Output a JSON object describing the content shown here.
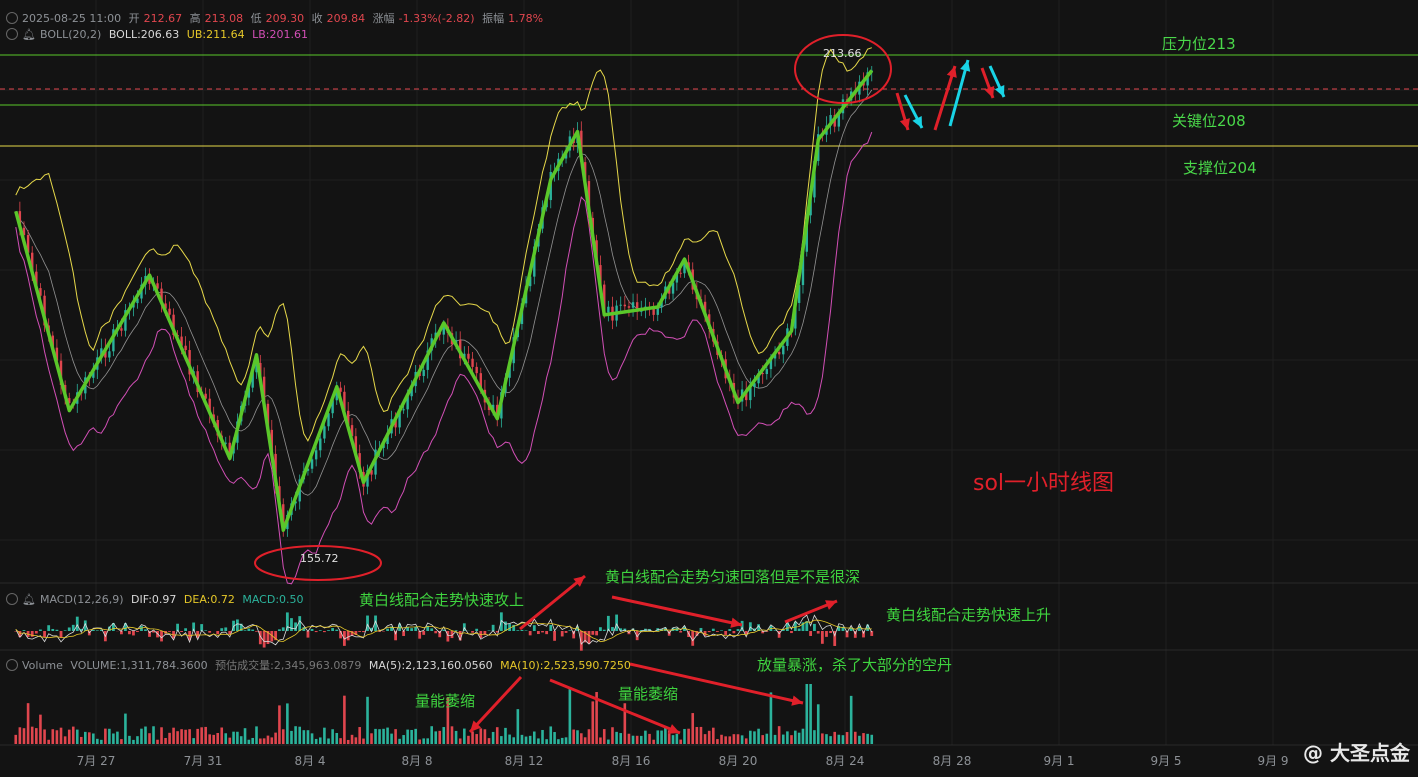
{
  "header": {
    "datetime": "2025-08-25 11:00",
    "open_label": "开",
    "open": "212.67",
    "high_label": "高",
    "high": "213.08",
    "low_label": "低",
    "low": "209.30",
    "close_label": "收",
    "close": "209.84",
    "change_label": "涨幅",
    "change": "-1.33%(-2.82)",
    "amp_label": "振幅",
    "amp": "1.78%",
    "boll_name": "BOLL(20,2)",
    "boll_val": "BOLL:206.63",
    "ub": "UB:211.64",
    "lb": "LB:201.61"
  },
  "macd_header": {
    "name": "MACD(12,26,9)",
    "dif": "DIF:0.97",
    "dea": "DEA:0.72",
    "macd": "MACD:0.50"
  },
  "volume_header": {
    "name": "Volume",
    "volume": "VOLUME:1,311,784.3600",
    "est": "预估成交量:2,345,963.0879",
    "ma5": "MA(5):2,123,160.0560",
    "ma10": "MA(10):2,523,590.7250"
  },
  "levels": {
    "resistance": "压力位213",
    "key": "关键位208",
    "support": "支撑位204"
  },
  "price_labels": {
    "high": "213.66",
    "low": "155.72"
  },
  "title": "sol一小时线图",
  "annotations": {
    "macd_1": "黄白线配合走势快速攻上",
    "macd_2": "黄白线配合走势匀速回落但是不是很深",
    "macd_3": "黄白线配合走势快速上升",
    "vol_1": "量能萎缩",
    "vol_2": "量能萎缩",
    "vol_3": "放量暴涨，杀了大部分的空丹"
  },
  "watermark": "@ 大圣点金",
  "colors": {
    "bg": "#131313",
    "up": "#2bb39c",
    "down": "#e0464e",
    "zigzag": "#5ac72a",
    "ub": "#e6d84a",
    "lb": "#d24fb6",
    "mid": "#c8c8c8"
  },
  "chart_data": {
    "type": "candlestick",
    "interval": "1h",
    "x_ticks": [
      "7月 27",
      "7月 31",
      "8月 4",
      "8月 8",
      "8月 12",
      "8月 16",
      "8月 20",
      "8月 24",
      "8月 28",
      "9月 1",
      "9月 5",
      "9月 9"
    ],
    "horizontal_levels": [
      213,
      208,
      204
    ],
    "swing_points": [
      {
        "date": "7月 24",
        "price": 196
      },
      {
        "date": "7月 26",
        "price": 171
      },
      {
        "date": "7月 29",
        "price": 188
      },
      {
        "date": "8月 1",
        "price": 165
      },
      {
        "date": "8月 2",
        "price": 178
      },
      {
        "date": "8月 3",
        "price": 156
      },
      {
        "date": "8月 5",
        "price": 174
      },
      {
        "date": "8月 6",
        "price": 162
      },
      {
        "date": "8月 9",
        "price": 182
      },
      {
        "date": "8月 11",
        "price": 170
      },
      {
        "date": "8月 13",
        "price": 200
      },
      {
        "date": "8月 14",
        "price": 206
      },
      {
        "date": "8月 15",
        "price": 183
      },
      {
        "date": "8月 17",
        "price": 184
      },
      {
        "date": "8月 18",
        "price": 190
      },
      {
        "date": "8月 20",
        "price": 172
      },
      {
        "date": "8月 22",
        "price": 181
      },
      {
        "date": "8月 23",
        "price": 205
      },
      {
        "date": "8月 25",
        "price": 213.66
      }
    ],
    "y_range": [
      150,
      220
    ]
  }
}
